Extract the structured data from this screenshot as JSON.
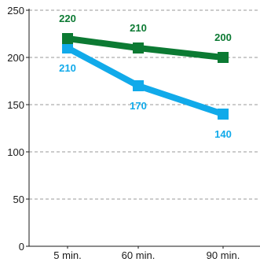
{
  "chart_data": {
    "type": "line",
    "categories": [
      "5 min.",
      "60 min.",
      "90 min."
    ],
    "series": [
      {
        "values": [
          220,
          210,
          200
        ],
        "color": "#0c7a33",
        "labels": [
          "220",
          "210",
          "200"
        ]
      },
      {
        "values": [
          210,
          170,
          140
        ],
        "color": "#11aaea",
        "labels": [
          "210",
          "170",
          "140"
        ]
      }
    ],
    "ylim": [
      0,
      250
    ],
    "yticks": [
      0,
      50,
      100,
      150,
      200,
      250
    ],
    "ytick_labels": [
      "0",
      "50",
      "100",
      "150",
      "200",
      "250"
    ],
    "grid": true,
    "grid_color": "#9a9a9a",
    "title": "",
    "xlabel": "",
    "ylabel": ""
  }
}
